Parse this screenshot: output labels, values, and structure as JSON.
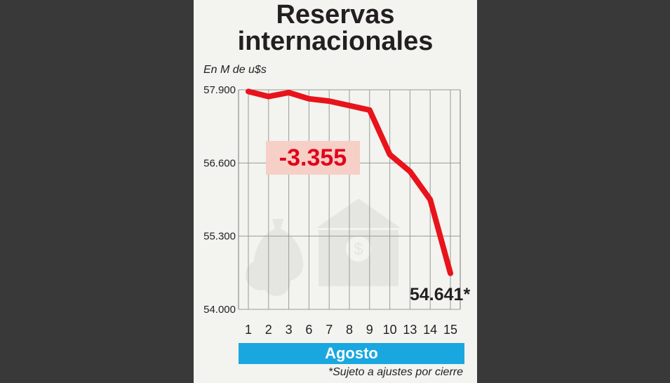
{
  "title_line1": "Reservas",
  "title_line2": "internacionales",
  "unit_label": "En M de u$s",
  "delta_label": "-3.355",
  "end_label": "54.641*",
  "month_label": "Agosto",
  "footnote": "*Sujeto a ajustes por cierre",
  "colors": {
    "line": "#e8131b",
    "month_bar": "#1aa7e0",
    "delta_bg": "#f6cfc6",
    "card_bg": "#f3f3ef",
    "outer_bg": "#393939"
  },
  "icons": [
    "money-bag-icon",
    "coins-icon",
    "bank-dollar-icon"
  ],
  "chart_data": {
    "type": "line",
    "x": [
      "1",
      "2",
      "3",
      "6",
      "7",
      "8",
      "9",
      "10",
      "13",
      "14",
      "15"
    ],
    "series": [
      {
        "values": [
          57870,
          57780,
          57850,
          57740,
          57700,
          57620,
          57540,
          56750,
          56450,
          55950,
          54641
        ]
      }
    ],
    "yticks": [
      57900,
      56600,
      55300,
      54000
    ],
    "ytick_labels": [
      "57.900",
      "56.600",
      "55.300",
      "54.000"
    ],
    "ylim": [
      54000,
      57900
    ],
    "xlabel": "Agosto",
    "ylabel": "En M de u$s",
    "grid": true
  }
}
